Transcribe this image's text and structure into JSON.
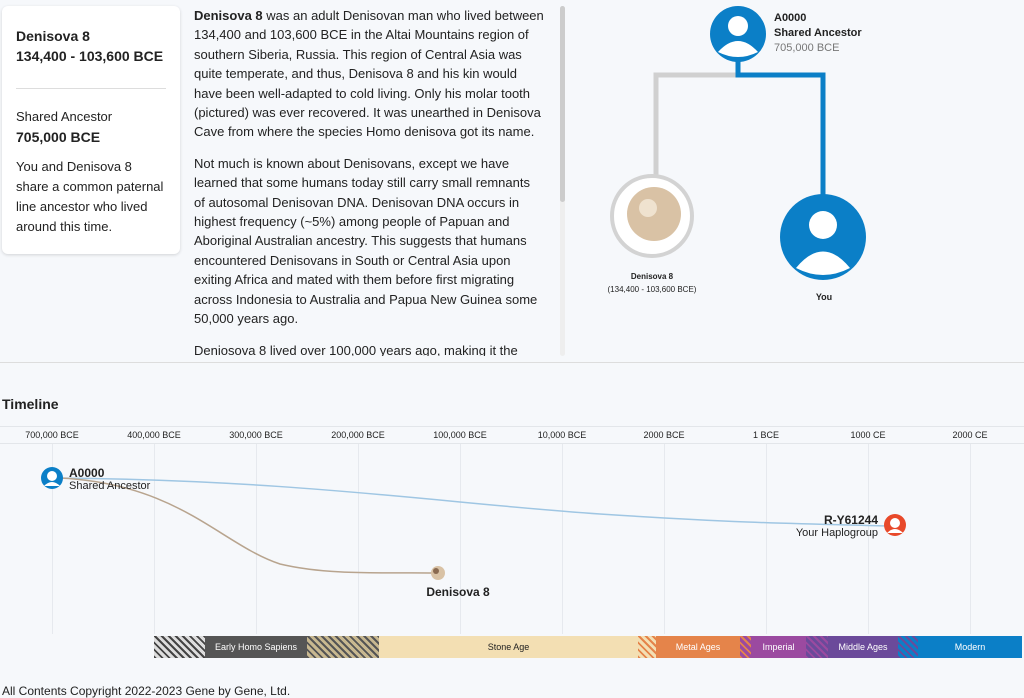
{
  "card": {
    "title": "Denisova 8",
    "dates": "134,400 - 103,600 BCE",
    "ancestor_label": "Shared Ancestor",
    "ancestor_date": "705,000 BCE",
    "description": "You and Denisova 8 share a common paternal line ancestor who lived around this time."
  },
  "article": {
    "lead": "Denisova 8",
    "p1": " was an adult Denisovan man who lived between 134,400 and 103,600 BCE in the Altai Mountains region of southern Siberia, Russia. This region of Central Asia was quite temperate, and thus, Denisova 8 and his kin would have been well-adapted to cold living. Only his molar tooth (pictured) was ever recovered. It was unearthed in Denisova Cave from where the species Homo denisova got its name.",
    "p2": "Not much is known about Denisovans, except we have learned that some humans today still carry small remnants of autosomal Denisovan DNA. Denisovan DNA occurs in highest frequency (~5%) among people of Papuan and Aboriginal Australian ancestry. This suggests that humans encountered Denisovans in South or Central Asia upon exiting Africa and mated with them before first migrating across Indonesia to Australia and Papua New Guinea some 50,000 years ago.",
    "p3": "Deniosova 8 lived over 100,000 years ago, making it the"
  },
  "tree": {
    "ancestor_id": "A0000",
    "ancestor_label": "Shared Ancestor",
    "ancestor_date": "705,000 BCE",
    "sample_name": "Denisova 8",
    "sample_dates": "(134,400 - 103,600 BCE)",
    "you": "You"
  },
  "timeline": {
    "title": "Timeline",
    "ticks": [
      "700,000 BCE",
      "400,000 BCE",
      "300,000 BCE",
      "200,000 BCE",
      "100,000 BCE",
      "10,000 BCE",
      "2000 BCE",
      "1 BCE",
      "1000 CE",
      "2000 CE"
    ],
    "ancestor_id": "A0000",
    "ancestor_label": "Shared Ancestor",
    "sample_name": "Denisova 8",
    "hap_id": "R-Y61244",
    "hap_label": "Your Haplogroup",
    "eras": [
      "Early Homo Sapiens",
      "Stone Age",
      "Metal Ages",
      "Imperial",
      "Middle Ages",
      "Modern"
    ]
  },
  "colors": {
    "blue": "#0b7fc7",
    "orange": "#e8492a",
    "gray_line": "#d0d0d0"
  },
  "footer": "All Contents Copyright 2022-2023 Gene by Gene, Ltd."
}
